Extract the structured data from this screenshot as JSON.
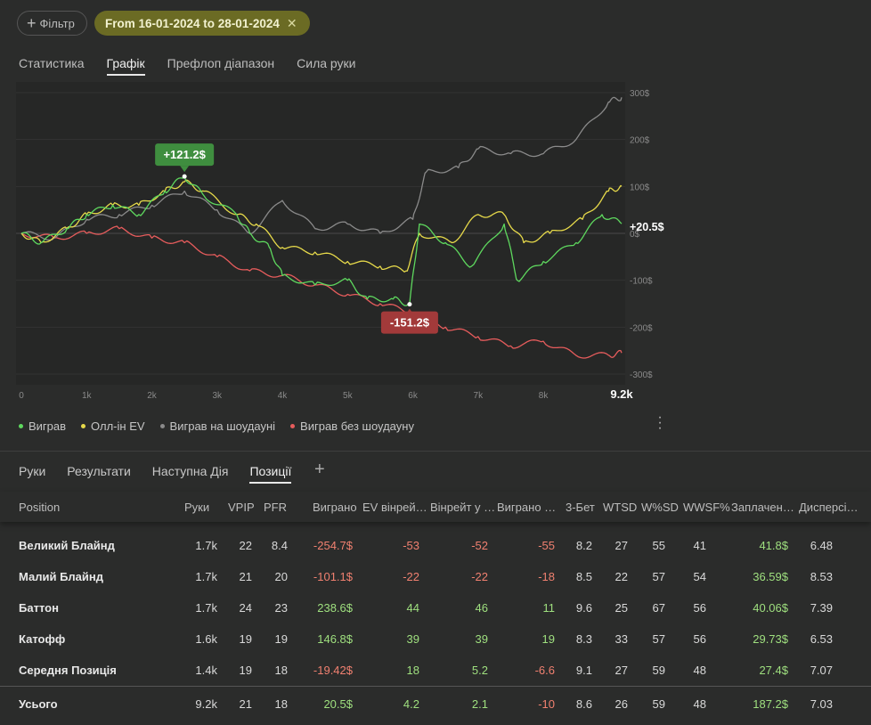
{
  "filter": {
    "label": "Фільтр",
    "date_range": "From 16-01-2024 to 28-01-2024"
  },
  "top_tabs": [
    {
      "label": "Статистика",
      "active": false
    },
    {
      "label": "Графік",
      "active": true
    },
    {
      "label": "Префлоп діапазон",
      "active": false
    },
    {
      "label": "Сила руки",
      "active": false
    }
  ],
  "chart_data": {
    "type": "line",
    "x_ticks": [
      "0",
      "1k",
      "2k",
      "3k",
      "4k",
      "5k",
      "6k",
      "7k",
      "8k",
      "9.2k"
    ],
    "y_ticks": [
      "300$",
      "200$",
      "100$",
      "0$",
      "-100$",
      "-200$",
      "-300$"
    ],
    "xlim": [
      0,
      9200
    ],
    "ylim": [
      -300,
      300
    ],
    "annotations": [
      {
        "label": "+121.2$",
        "x": 2500,
        "y": 121.2
      },
      {
        "label": "-151.2$",
        "x": 5950,
        "y": -151.2
      },
      {
        "label": "+20.5$",
        "x": 9200,
        "y": 20.5
      }
    ],
    "series": [
      {
        "name": "Виграв",
        "color": "#5ed85e",
        "points": [
          [
            0,
            0
          ],
          [
            300,
            -20
          ],
          [
            700,
            10
          ],
          [
            1000,
            40
          ],
          [
            1400,
            60
          ],
          [
            1800,
            40
          ],
          [
            2200,
            90
          ],
          [
            2500,
            121.2
          ],
          [
            2800,
            80
          ],
          [
            3300,
            40
          ],
          [
            3500,
            0
          ],
          [
            3800,
            -30
          ],
          [
            4000,
            -90
          ],
          [
            4500,
            -110
          ],
          [
            5000,
            -100
          ],
          [
            5300,
            -140
          ],
          [
            5700,
            -140
          ],
          [
            5950,
            -151.2
          ],
          [
            6100,
            20
          ],
          [
            6500,
            -20
          ],
          [
            6900,
            -70
          ],
          [
            7400,
            20
          ],
          [
            7600,
            -100
          ],
          [
            8000,
            -60
          ],
          [
            8500,
            -20
          ],
          [
            8900,
            40
          ],
          [
            9200,
            20.5
          ]
        ]
      },
      {
        "name": "Олл-ін EV",
        "color": "#e6d94a",
        "points": [
          [
            0,
            0
          ],
          [
            300,
            -20
          ],
          [
            700,
            10
          ],
          [
            1000,
            40
          ],
          [
            1400,
            60
          ],
          [
            1800,
            60
          ],
          [
            2200,
            90
          ],
          [
            2500,
            110
          ],
          [
            2800,
            90
          ],
          [
            3300,
            40
          ],
          [
            3600,
            20
          ],
          [
            4000,
            -30
          ],
          [
            4500,
            -40
          ],
          [
            5000,
            -60
          ],
          [
            5500,
            -70
          ],
          [
            5900,
            -80
          ],
          [
            6100,
            0
          ],
          [
            6600,
            -20
          ],
          [
            7000,
            40
          ],
          [
            7400,
            40
          ],
          [
            7700,
            -20
          ],
          [
            8100,
            0
          ],
          [
            8600,
            30
          ],
          [
            9000,
            90
          ],
          [
            9200,
            100
          ]
        ]
      },
      {
        "name": "Виграв на шоудауні",
        "color": "#8a8a8a",
        "points": [
          [
            0,
            0
          ],
          [
            500,
            -10
          ],
          [
            1000,
            30
          ],
          [
            1500,
            40
          ],
          [
            2000,
            60
          ],
          [
            2500,
            90
          ],
          [
            3000,
            50
          ],
          [
            3500,
            0
          ],
          [
            4000,
            70
          ],
          [
            4500,
            10
          ],
          [
            5000,
            20
          ],
          [
            5500,
            0
          ],
          [
            6000,
            30
          ],
          [
            6200,
            130
          ],
          [
            6700,
            140
          ],
          [
            7000,
            180
          ],
          [
            7500,
            170
          ],
          [
            8000,
            170
          ],
          [
            8500,
            200
          ],
          [
            9000,
            280
          ],
          [
            9200,
            290
          ]
        ]
      },
      {
        "name": "Виграв без шоудауну",
        "color": "#e65c5c",
        "points": [
          [
            0,
            0
          ],
          [
            500,
            -10
          ],
          [
            1000,
            0
          ],
          [
            1500,
            10
          ],
          [
            2000,
            -10
          ],
          [
            2500,
            -20
          ],
          [
            3000,
            -50
          ],
          [
            3500,
            -80
          ],
          [
            4000,
            -90
          ],
          [
            4500,
            -110
          ],
          [
            5000,
            -130
          ],
          [
            5500,
            -150
          ],
          [
            6000,
            -170
          ],
          [
            6500,
            -200
          ],
          [
            7000,
            -220
          ],
          [
            7500,
            -240
          ],
          [
            8000,
            -230
          ],
          [
            8500,
            -260
          ],
          [
            9000,
            -260
          ],
          [
            9200,
            -255
          ]
        ]
      }
    ]
  },
  "bottom_tabs": [
    {
      "label": "Руки",
      "active": false
    },
    {
      "label": "Результати",
      "active": false
    },
    {
      "label": "Наступна Дія",
      "active": false
    },
    {
      "label": "Позиції",
      "active": true
    }
  ],
  "table": {
    "columns": [
      "Position",
      "Руки",
      "VPIP",
      "PFR",
      "Виграно",
      "EV вінрей…",
      "Вінрейт у …",
      "Виграно …",
      "3-Бет",
      "WTSD",
      "W%SD",
      "WWSF%",
      "Заплачен…",
      "Дисперсі…"
    ],
    "rows": [
      {
        "pos": "Великий Блайнд",
        "hands": "1.7k",
        "vpip": "22",
        "pfr": "8.4",
        "won": "-254.7$",
        "ev": "-53",
        "wr": "-52",
        "won2": "-55",
        "bet3": "8.2",
        "wtsd": "27",
        "wsd": "55",
        "wwsf": "41",
        "paid": "41.8$",
        "disp": "6.48"
      },
      {
        "pos": "Малий Блайнд",
        "hands": "1.7k",
        "vpip": "21",
        "pfr": "20",
        "won": "-101.1$",
        "ev": "-22",
        "wr": "-22",
        "won2": "-18",
        "bet3": "8.5",
        "wtsd": "22",
        "wsd": "57",
        "wwsf": "54",
        "paid": "36.59$",
        "disp": "8.53"
      },
      {
        "pos": "Баттон",
        "hands": "1.7k",
        "vpip": "24",
        "pfr": "23",
        "won": "238.6$",
        "ev": "44",
        "wr": "46",
        "won2": "11",
        "bet3": "9.6",
        "wtsd": "25",
        "wsd": "67",
        "wwsf": "56",
        "paid": "40.06$",
        "disp": "7.39"
      },
      {
        "pos": "Катофф",
        "hands": "1.6k",
        "vpip": "19",
        "pfr": "19",
        "won": "146.8$",
        "ev": "39",
        "wr": "39",
        "won2": "19",
        "bet3": "8.3",
        "wtsd": "33",
        "wsd": "57",
        "wwsf": "56",
        "paid": "29.73$",
        "disp": "6.53"
      },
      {
        "pos": "Середня Позиція",
        "hands": "1.4k",
        "vpip": "19",
        "pfr": "18",
        "won": "-19.42$",
        "ev": "18",
        "wr": "5.2",
        "won2": "-6.6",
        "bet3": "9.1",
        "wtsd": "27",
        "wsd": "59",
        "wwsf": "48",
        "paid": "27.4$",
        "disp": "7.07"
      }
    ],
    "total": {
      "pos": "Усього",
      "hands": "9.2k",
      "vpip": "21",
      "pfr": "18",
      "won": "20.5$",
      "ev": "4.2",
      "wr": "2.1",
      "won2": "-10",
      "bet3": "8.6",
      "wtsd": "26",
      "wsd": "59",
      "wwsf": "48",
      "paid": "187.2$",
      "disp": "7.03"
    }
  }
}
